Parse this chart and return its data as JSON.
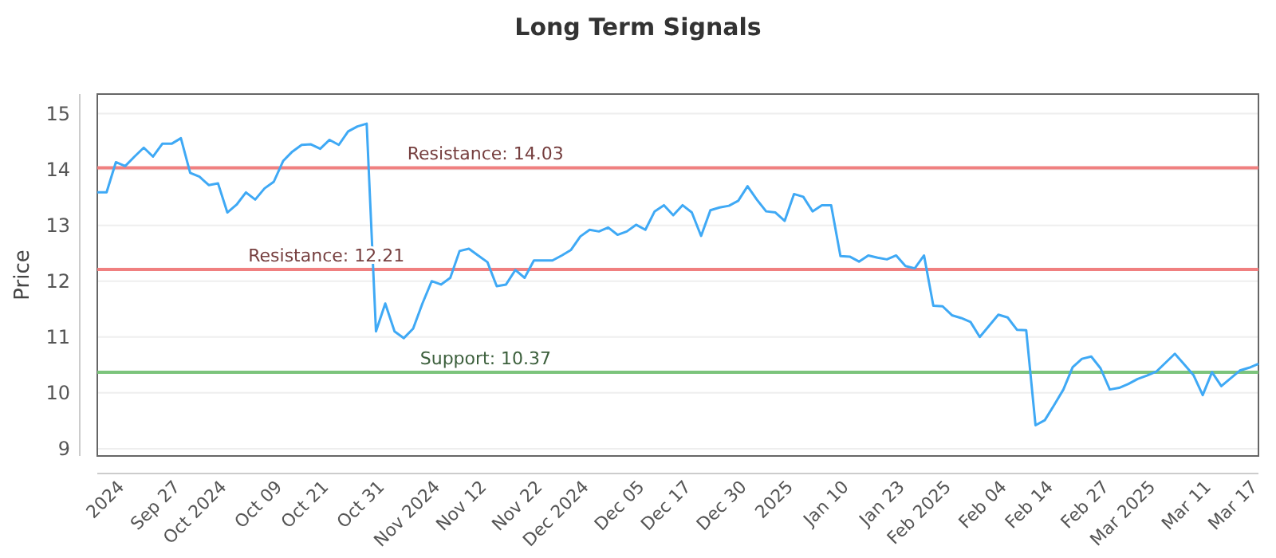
{
  "chart_data": {
    "type": "line",
    "title": "Long Term Signals",
    "ylabel": "Price",
    "categories": [
      null,
      null,
      null,
      "2024",
      null,
      null,
      null,
      null,
      null,
      "Sep 27",
      null,
      null,
      null,
      null,
      "Oct 2024",
      null,
      null,
      null,
      null,
      null,
      "Oct 09",
      null,
      null,
      null,
      null,
      "Oct 21",
      null,
      null,
      null,
      null,
      null,
      "Oct 31",
      null,
      null,
      null,
      null,
      null,
      "Nov 2024",
      null,
      null,
      null,
      null,
      "Nov 12",
      null,
      null,
      null,
      null,
      null,
      "Nov 22",
      null,
      null,
      null,
      null,
      "Dec 2024",
      null,
      null,
      null,
      null,
      null,
      "Dec 05",
      null,
      null,
      null,
      null,
      "Dec 17",
      null,
      null,
      null,
      null,
      null,
      "Dec 30",
      null,
      null,
      null,
      null,
      "2025",
      null,
      null,
      null,
      null,
      null,
      "Jan 10",
      null,
      null,
      null,
      null,
      null,
      "Jan 23",
      null,
      null,
      null,
      null,
      "Feb 2025",
      null,
      null,
      null,
      null,
      null,
      "Feb 04",
      null,
      null,
      null,
      null,
      "Feb 14",
      null,
      null,
      null,
      null,
      null,
      "Feb 27",
      null,
      null,
      null,
      null,
      "Mar 2025",
      null,
      null,
      null,
      null,
      null,
      "Mar 11",
      null,
      null,
      null,
      null,
      "Mar 17"
    ],
    "series": [
      {
        "color": "#3fa9f5",
        "values": [
          13.59,
          13.59,
          14.13,
          14.06,
          14.23,
          14.39,
          14.23,
          14.46,
          14.46,
          14.56,
          13.94,
          13.87,
          13.72,
          13.75,
          13.23,
          13.37,
          13.59,
          13.46,
          13.66,
          13.78,
          14.15,
          14.32,
          14.44,
          14.45,
          14.37,
          14.53,
          14.44,
          14.68,
          14.77,
          14.82,
          11.1,
          11.6,
          11.1,
          10.98,
          11.15,
          11.6,
          12.0,
          11.94,
          12.06,
          12.54,
          12.58,
          12.46,
          12.34,
          11.91,
          11.94,
          12.2,
          12.06,
          12.37,
          12.37,
          12.37,
          12.46,
          12.56,
          12.8,
          12.92,
          12.89,
          12.96,
          12.83,
          12.89,
          13.01,
          12.92,
          13.25,
          13.36,
          13.18,
          13.36,
          13.23,
          12.81,
          13.27,
          13.32,
          13.35,
          13.44,
          13.7,
          13.46,
          13.25,
          13.23,
          13.08,
          13.56,
          13.51,
          13.25,
          13.36,
          13.36,
          12.45,
          12.44,
          12.35,
          12.46,
          12.42,
          12.39,
          12.46,
          12.27,
          12.23,
          12.46,
          11.56,
          11.55,
          11.39,
          11.34,
          11.27,
          11.0,
          11.2,
          11.4,
          11.35,
          11.13,
          11.12,
          9.42,
          9.51,
          9.78,
          10.06,
          10.46,
          10.61,
          10.65,
          10.44,
          10.06,
          10.09,
          10.16,
          10.25,
          10.31,
          10.38,
          10.54,
          10.7,
          10.51,
          10.32,
          9.96,
          10.37,
          10.12,
          10.26,
          10.4,
          10.45,
          10.52
        ]
      }
    ],
    "ylim": [
      8.87,
      15.35
    ],
    "yticks": [
      9,
      10,
      11,
      12,
      13,
      14,
      15
    ],
    "grid": "y",
    "marker": "none",
    "line_style": "solid",
    "ref_lines": [
      {
        "axis": "y",
        "value": 14.03,
        "label": "Resistance: 14.03",
        "color": "#f08080"
      },
      {
        "axis": "y",
        "value": 12.21,
        "label": "Resistance: 12.21",
        "color": "#f08080"
      },
      {
        "axis": "y",
        "value": 10.37,
        "label": "Support: 10.37",
        "color": "#7cc47c"
      }
    ]
  }
}
